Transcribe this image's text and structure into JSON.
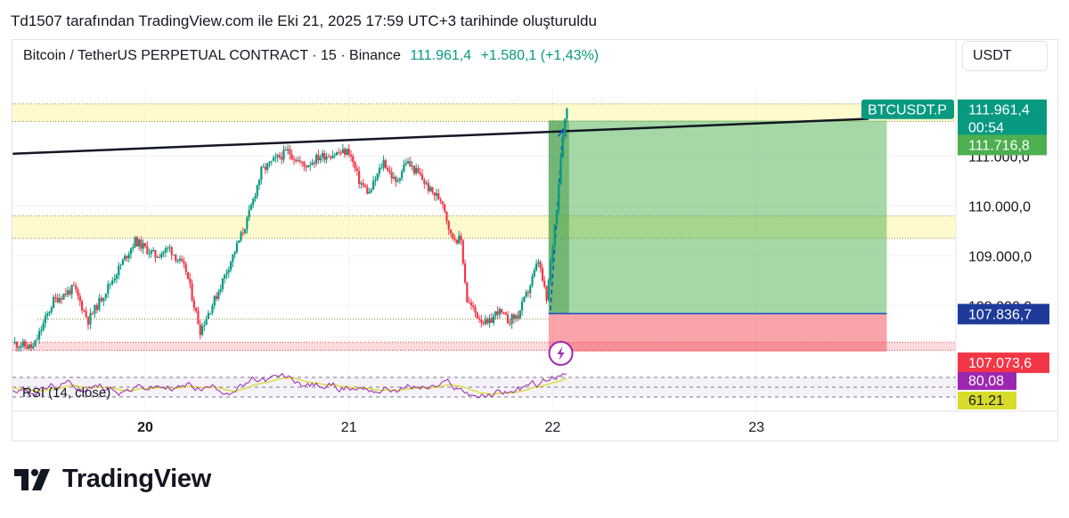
{
  "header": {
    "caption": "Td1507 tarafından TradingView.com ile Eki 21, 2025 17:59 UTC+3 tarihinde oluşturuldu"
  },
  "symbol": {
    "title": "Bitcoin / TetherUS PERPETUAL CONTRACT · 15 · Binance",
    "last": "111.961,4",
    "change": "+1.580,1 (+1,43%)"
  },
  "toolbar": {
    "currency": "USDT"
  },
  "brand": {
    "name": "TradingView"
  },
  "chart_data": {
    "type": "candlestick",
    "symbol": "BTCUSDT.P",
    "interval": "15",
    "ylim": [
      106700,
      112350
    ],
    "x_ticks": [
      {
        "label": "20",
        "day": 20
      },
      {
        "label": "21",
        "day": 21
      },
      {
        "label": "22",
        "day": 22
      },
      {
        "label": "23",
        "day": 23
      }
    ],
    "y_ticks": [
      {
        "label": "110.000,0",
        "value": 110000
      },
      {
        "label": "109.000,0",
        "value": 109000
      },
      {
        "label": "108.000,0",
        "value": 108000
      },
      {
        "label": "111.000,0",
        "value": 111000
      }
    ],
    "price_path": [
      [
        19.35,
        107250
      ],
      [
        19.45,
        107150
      ],
      [
        19.55,
        108100
      ],
      [
        19.65,
        108350
      ],
      [
        19.72,
        107700
      ],
      [
        19.85,
        108600
      ],
      [
        19.95,
        109300
      ],
      [
        20.05,
        109000
      ],
      [
        20.12,
        109150
      ],
      [
        20.2,
        108700
      ],
      [
        20.27,
        107500
      ],
      [
        20.35,
        108200
      ],
      [
        20.42,
        108900
      ],
      [
        20.5,
        109700
      ],
      [
        20.57,
        110700
      ],
      [
        20.63,
        110900
      ],
      [
        20.7,
        111100
      ],
      [
        20.78,
        110800
      ],
      [
        20.86,
        111000
      ],
      [
        20.93,
        111050
      ],
      [
        21.0,
        111100
      ],
      [
        21.05,
        110500
      ],
      [
        21.1,
        110250
      ],
      [
        21.17,
        110900
      ],
      [
        21.23,
        110450
      ],
      [
        21.28,
        110900
      ],
      [
        21.35,
        110600
      ],
      [
        21.4,
        110300
      ],
      [
        21.46,
        110100
      ],
      [
        21.5,
        109400
      ],
      [
        21.55,
        109300
      ],
      [
        21.58,
        108100
      ],
      [
        21.63,
        107800
      ],
      [
        21.68,
        107600
      ],
      [
        21.73,
        107900
      ],
      [
        21.78,
        107700
      ],
      [
        21.83,
        107800
      ],
      [
        21.88,
        108300
      ],
      [
        21.93,
        108900
      ],
      [
        21.97,
        108100
      ],
      [
        22.02,
        110000
      ],
      [
        22.05,
        111500
      ],
      [
        22.07,
        111961.4
      ]
    ],
    "levels": {
      "last_price": {
        "label": "BTCUSDT.P",
        "value": 111961.4,
        "price": "111.961,4",
        "countdown": "00:54"
      },
      "target": {
        "value": 111716.8,
        "label": "111.716,8"
      },
      "entry": {
        "value": 107836.7,
        "label": "107.836,7"
      },
      "stop": {
        "value": 107073.6,
        "label": "107.073,6"
      }
    },
    "zones": [
      {
        "from": 111700,
        "to": 112050
      },
      {
        "from": 109350,
        "to": 109800
      },
      {
        "from": 107100,
        "to": 107260
      }
    ],
    "trendline": {
      "start": [
        19.35,
        111050
      ],
      "end": [
        23.55,
        111750
      ]
    },
    "position": {
      "start_day": 21.98,
      "end_day": 23.64,
      "entry": 107836.7,
      "target": 111716.8,
      "stop": 107073.6
    },
    "rsi": {
      "label": "RSI (14, close)",
      "value": "80,08",
      "ma_value": "61.21",
      "rsi_color": "#9c27b0",
      "ma_color": "#d7dc2a"
    },
    "colors": {
      "up": "#089981",
      "down": "#f23645",
      "target_zone": "#4caf50",
      "stop_zone": "#f23645",
      "entry_line": "#1848cc",
      "label_bg": "#089981"
    }
  }
}
